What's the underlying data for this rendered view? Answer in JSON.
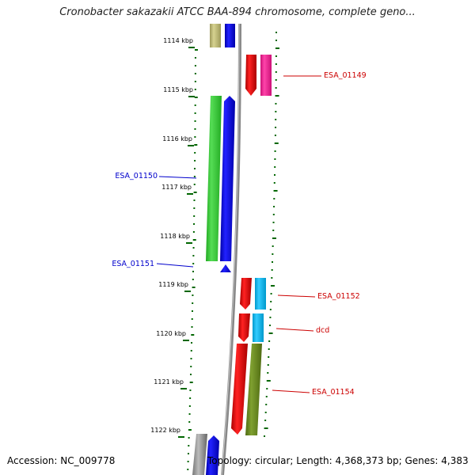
{
  "header": {
    "title": "Cronobacter sakazakii ATCC BAA-894 chromosome, complete geno..."
  },
  "footer": {
    "accession": "Accession: NC_009778",
    "summary": "Topology: circular; Length: 4,368,373 bp; Genes: 4,383"
  },
  "ruler": {
    "ticks": [
      "1114 kbp",
      "1115 kbp",
      "1116 kbp",
      "1117 kbp",
      "1118 kbp",
      "1119 kbp",
      "1120 kbp",
      "1121 kbp",
      "1122 kbp"
    ]
  },
  "genes": {
    "left": [
      {
        "label": "ESA_01150",
        "color": "#0000cc"
      },
      {
        "label": "ESA_01151",
        "color": "#0000cc"
      }
    ],
    "right": [
      {
        "label": "ESA_01149",
        "color": "#cc0000"
      },
      {
        "label": "ESA_01152",
        "color": "#cc0000"
      },
      {
        "label": "dcd",
        "color": "#cc0000"
      },
      {
        "label": "ESA_01154",
        "color": "#cc0000"
      }
    ]
  },
  "colors": {
    "forward_cds": "#0000ee",
    "reverse_cds": "#ee0000",
    "rna_green": "#33cc33",
    "olive": "#6b8e23",
    "khaki": "#bdb76b",
    "cyan": "#00bfff",
    "magenta": "#ff1493",
    "backbone": "#888888",
    "tick_green": "#006600"
  }
}
